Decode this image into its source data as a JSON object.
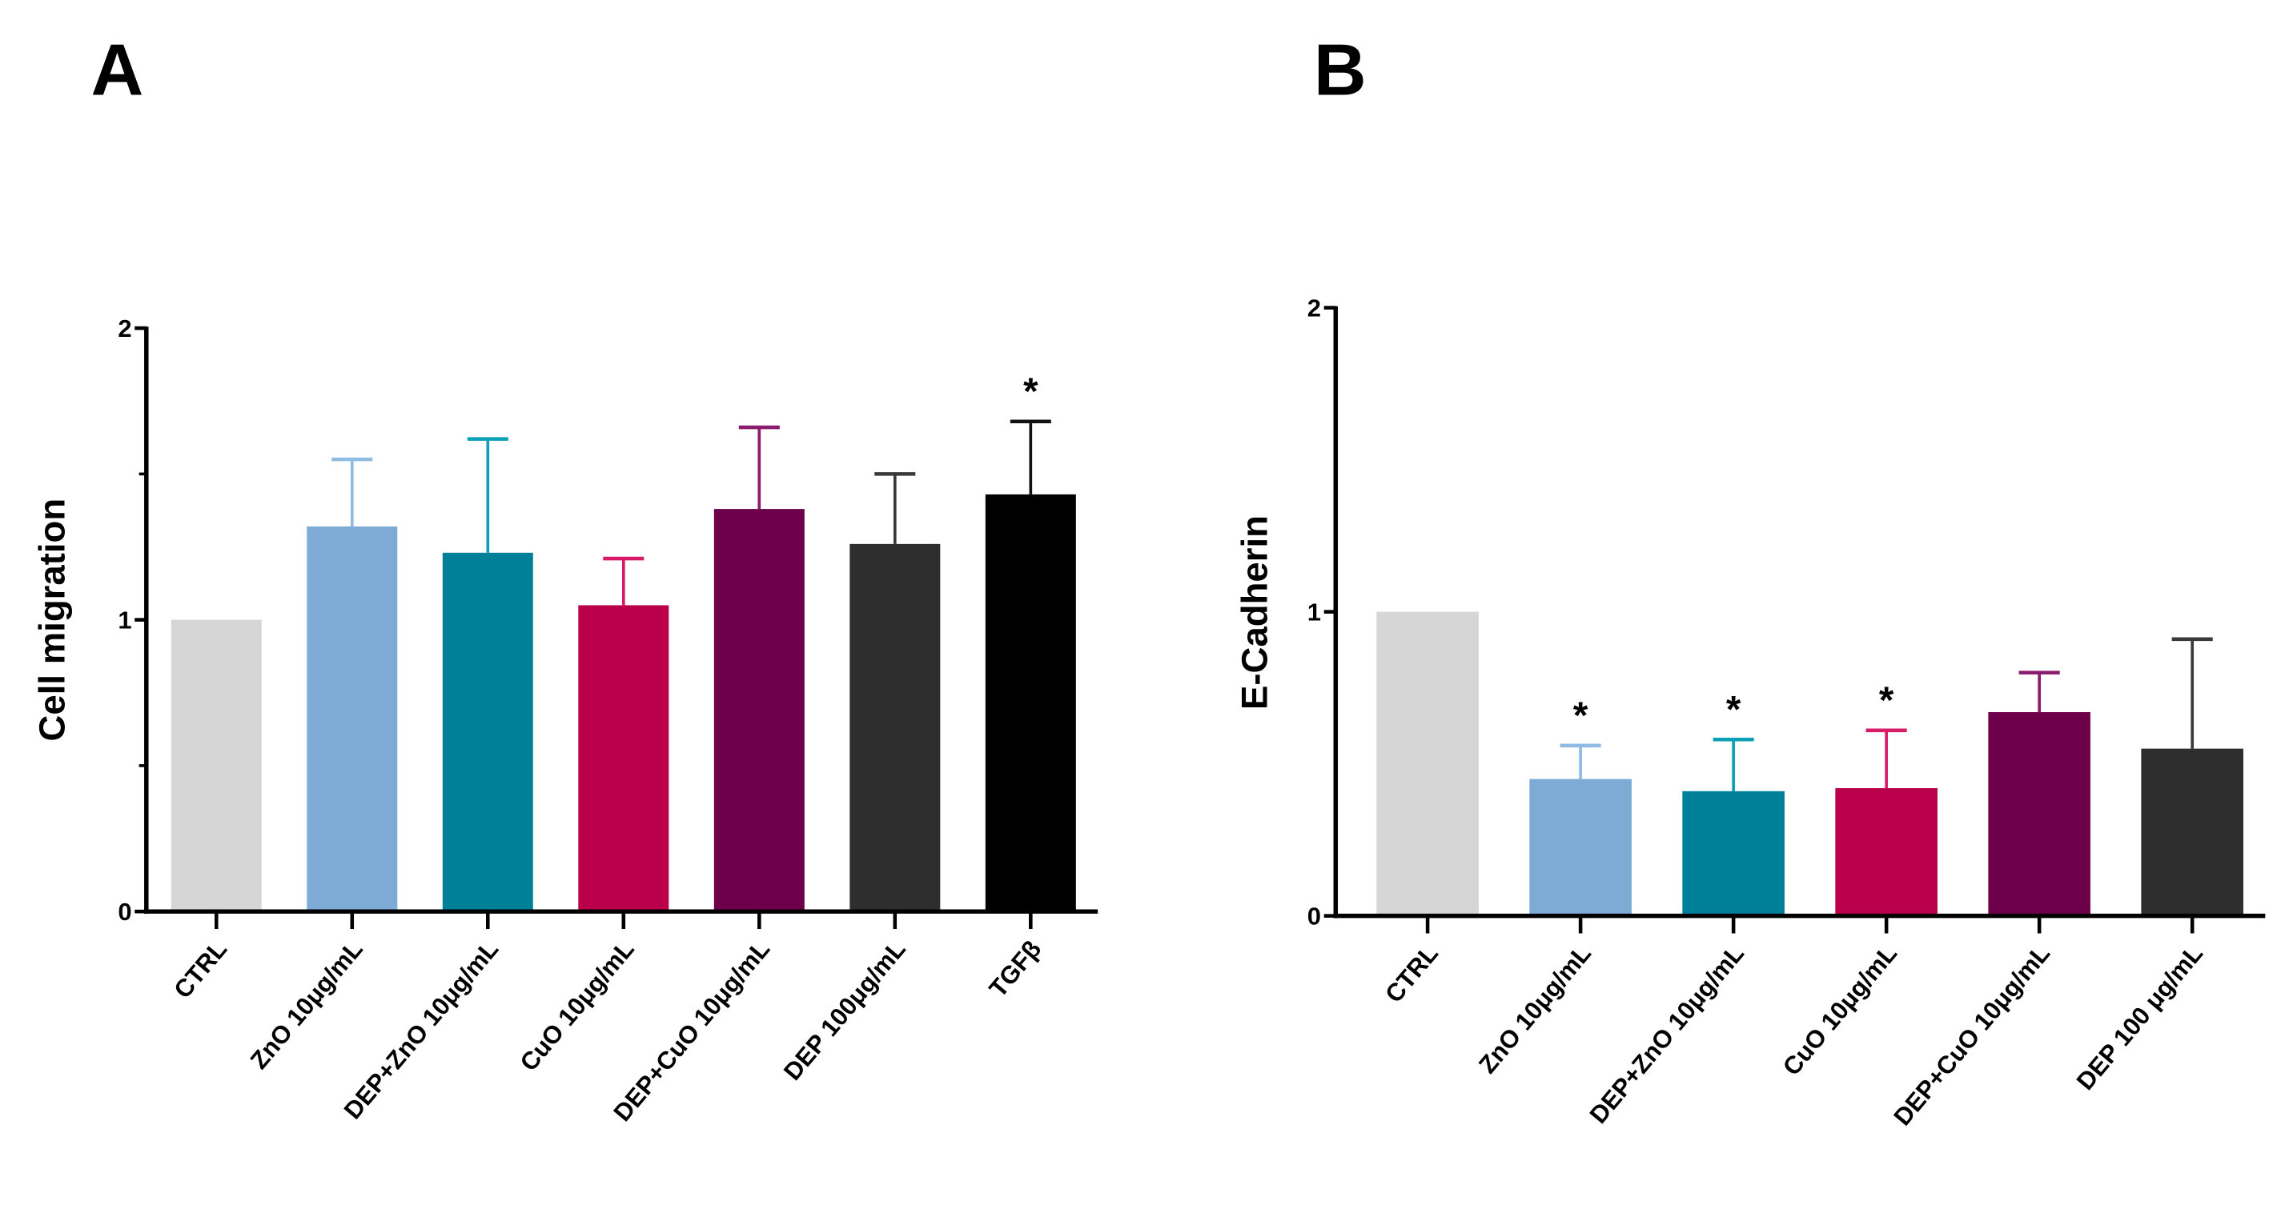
{
  "chart_data": [
    {
      "panel_label": "A",
      "type": "bar",
      "ylabel": "Cell migration",
      "ylim": [
        0,
        2
      ],
      "yticks": [
        "0",
        "1",
        "2"
      ],
      "minor_ticks": [
        0.5,
        1.5
      ],
      "grid": false,
      "categories": [
        "CTRL",
        "ZnO 10μg/mL",
        "DEP+ZnO 10μg/mL",
        "CuO 10μg/mL",
        "DEP+CuO 10μg/mL",
        "DEP 100μg/mL",
        "TGFβ"
      ],
      "values": [
        1.0,
        1.32,
        1.23,
        1.05,
        1.38,
        1.26,
        1.43
      ],
      "error_upper": [
        null,
        1.55,
        1.62,
        1.21,
        1.66,
        1.5,
        1.68
      ],
      "significance": [
        "",
        "",
        "",
        "",
        "",
        "",
        "*"
      ],
      "colors": [
        "#d6d6d6",
        "#7eabd5",
        "#007f99",
        "#bb004b",
        "#6e004b",
        "#2e2e2e",
        "#000000"
      ],
      "error_colors": [
        "#d6d6d6",
        "#8fbbe3",
        "#0aa0b8",
        "#d81b68",
        "#8a1a6e",
        "#3a3a3a",
        "#111111"
      ]
    },
    {
      "panel_label": "B",
      "type": "bar",
      "ylabel": "E-Cadherin",
      "ylim": [
        0,
        2
      ],
      "yticks": [
        "0",
        "1",
        "2"
      ],
      "minor_ticks": [],
      "grid": false,
      "categories": [
        "CTRL",
        "ZnO 10μg/mL",
        "DEP+ZnO 10μg/mL",
        "CuO 10μg/mL",
        "DEP+CuO 10μg/mL",
        "DEP 100 μg/mL"
      ],
      "values": [
        1.0,
        0.45,
        0.41,
        0.42,
        0.67,
        0.55
      ],
      "error_upper": [
        null,
        0.56,
        0.58,
        0.61,
        0.8,
        0.91
      ],
      "significance": [
        "",
        "*",
        "*",
        "*",
        "",
        ""
      ],
      "colors": [
        "#d6d6d6",
        "#7eabd5",
        "#007f99",
        "#bb004b",
        "#6e004b",
        "#2e2e2e"
      ],
      "error_colors": [
        "#d6d6d6",
        "#8fbbe3",
        "#0aa0b8",
        "#d81b68",
        "#8a1a6e",
        "#3a3a3a"
      ]
    }
  ]
}
